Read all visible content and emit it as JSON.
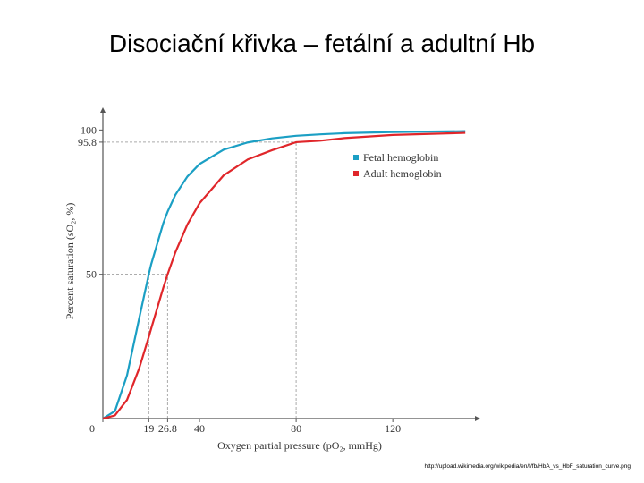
{
  "chart_data": {
    "type": "line",
    "title": "Disociační křivka – fetální a adultní Hb",
    "xlabel": "Oxygen partial pressure (pO₂, mmHg)",
    "ylabel": "Percent saturation (sO₂, %)",
    "x": [
      0,
      5,
      10,
      15,
      19,
      20,
      25,
      26.8,
      30,
      35,
      40,
      50,
      60,
      70,
      80,
      90,
      100,
      120,
      150
    ],
    "series": [
      {
        "name": "Fetal hemoglobin",
        "color": "#1b9fc4",
        "values": [
          0,
          2.6,
          15.0,
          34.6,
          50,
          53.5,
          67.7,
          71.7,
          77.5,
          83.9,
          88.2,
          93.2,
          95.7,
          97.1,
          98.0,
          98.5,
          98.9,
          99.3,
          99.6
        ]
      },
      {
        "name": "Adult hemoglobin",
        "color": "#e0262a",
        "values": [
          0,
          1.1,
          6.5,
          17.3,
          28.3,
          31.2,
          45.3,
          50,
          57.6,
          67.3,
          74.6,
          84.3,
          89.8,
          93.0,
          95.8,
          96.3,
          97.2,
          98.3,
          99.0
        ]
      }
    ],
    "xlim": [
      0,
      154
    ],
    "ylim": [
      0,
      106
    ],
    "xticks": [
      0,
      19,
      26.8,
      40,
      80,
      120
    ],
    "yticks": [
      50,
      95.8,
      100
    ],
    "guides": [
      {
        "x": 19,
        "y": 50
      },
      {
        "x": 26.8,
        "y": 50
      },
      {
        "x": 80,
        "y": 95.8
      }
    ],
    "source": "http://upload.wikimedia.org/wikipedia/en/f/fb/HbA_vs_HbF_saturation_curve.png"
  }
}
